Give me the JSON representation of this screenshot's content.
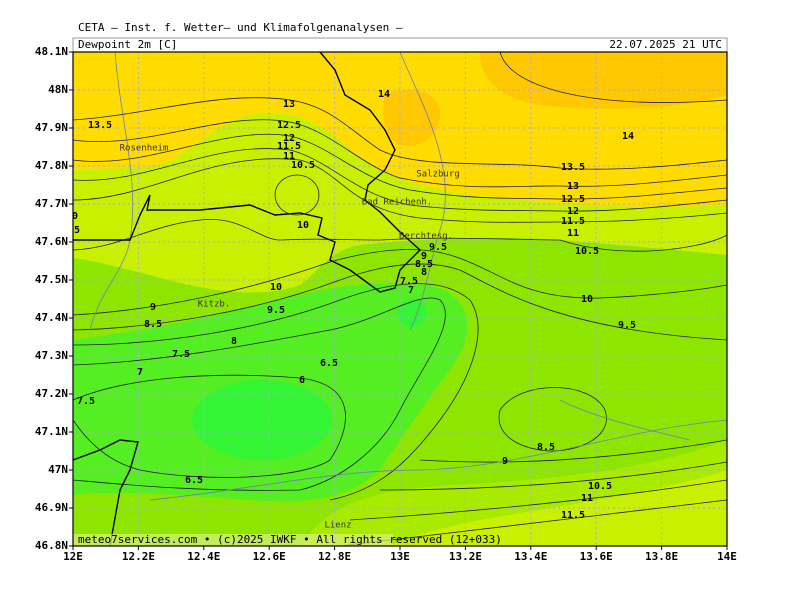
{
  "header": {
    "source": "CETA — Inst. f. Wetter— und Klimafolgenanalysen —",
    "title": "Dewpoint 2m [C]",
    "valid_time": "22.07.2025 21 UTC"
  },
  "map": {
    "lon_ticks": [
      {
        "value": 12,
        "label": "12E"
      },
      {
        "value": 12.2,
        "label": "12.2E"
      },
      {
        "value": 12.4,
        "label": "12.4E"
      },
      {
        "value": 12.6,
        "label": "12.6E"
      },
      {
        "value": 12.8,
        "label": "12.8E"
      },
      {
        "value": 13,
        "label": "13E"
      },
      {
        "value": 13.2,
        "label": "13.2E"
      },
      {
        "value": 13.4,
        "label": "13.4E"
      },
      {
        "value": 13.6,
        "label": "13.6E"
      },
      {
        "value": 13.8,
        "label": "13.8E"
      },
      {
        "value": 14,
        "label": "14E"
      }
    ],
    "lat_ticks": [
      {
        "value": 48.1,
        "label": "48.1N"
      },
      {
        "value": 48,
        "label": "48N"
      },
      {
        "value": 47.9,
        "label": "47.9N"
      },
      {
        "value": 47.8,
        "label": "47.8N"
      },
      {
        "value": 47.7,
        "label": "47.7N"
      },
      {
        "value": 47.6,
        "label": "47.6N"
      },
      {
        "value": 47.5,
        "label": "47.5N"
      },
      {
        "value": 47.4,
        "label": "47.4N"
      },
      {
        "value": 47.3,
        "label": "47.3N"
      },
      {
        "value": 47.2,
        "label": "47.2N"
      },
      {
        "value": 47.1,
        "label": "47.1N"
      },
      {
        "value": 47,
        "label": "47N"
      },
      {
        "value": 46.9,
        "label": "46.9N"
      },
      {
        "value": 46.8,
        "label": "46.8N"
      }
    ],
    "places": [
      "Rosenheim",
      "Salzburg",
      "Bad Reichenh.",
      "Berchtesg.",
      "Kitzb.",
      "Lienz"
    ],
    "contour_labels": [
      "13.5",
      "13",
      "12.5",
      "12",
      "11.5",
      "11",
      "10.5",
      "14",
      "14",
      "13.5",
      "13",
      "12.5",
      "12",
      "11.5",
      "11",
      "10.5",
      "10",
      "10",
      "9.5",
      "9",
      "8.5",
      "8",
      "7.5",
      "7",
      "7.5",
      "6.5",
      "6",
      "6.5",
      "9.5",
      "9",
      "8.5",
      "8",
      "7.5",
      "7",
      "10",
      "9.5",
      "8.5",
      "9",
      "10.5",
      "11",
      "11.5",
      "0",
      "5"
    ]
  },
  "footer": "meteo7services.com • (c)2025 IWKF • All rights reserved (12+033)"
}
